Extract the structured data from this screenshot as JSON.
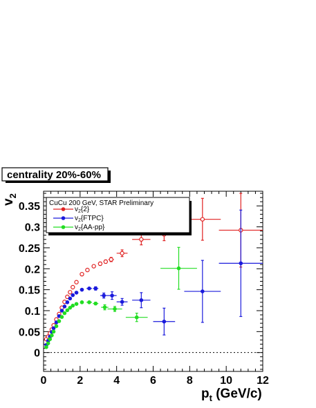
{
  "chart_data": {
    "type": "scatter",
    "title": "",
    "box_label": "centrality 20%-60%",
    "xlabel": {
      "main": "p",
      "sub": "t",
      "tail": " (GeV/c)"
    },
    "ylabel": {
      "main": "v",
      "sub": "2"
    },
    "xlim": [
      0,
      12
    ],
    "ylim": [
      -0.045,
      0.385
    ],
    "x_ticks": [
      "0",
      "2",
      "4",
      "6",
      "8",
      "10",
      "12"
    ],
    "y_ticks": [
      "0",
      "0.05",
      "0.1",
      "0.15",
      "0.2",
      "0.25",
      "0.3",
      "0.35"
    ],
    "zero_line": "dotted",
    "grid": false,
    "legend": {
      "position": "top-left",
      "header": "CuCu 200 GeV, STAR Preliminary",
      "entries": [
        {
          "main": "v",
          "sub": "2",
          "tail": "{2}"
        },
        {
          "main": "v",
          "sub": "2",
          "tail": "{FTPC}"
        },
        {
          "main": "v",
          "sub": "2",
          "tail": "{AA-pp}"
        }
      ]
    },
    "series": [
      {
        "color": "#e02020",
        "marker": "open-circle",
        "points": [
          {
            "x": 0.15,
            "y": 0.032,
            "xerr": 0,
            "yerr": 0
          },
          {
            "x": 0.25,
            "y": 0.038,
            "xerr": 0,
            "yerr": 0
          },
          {
            "x": 0.35,
            "y": 0.046,
            "xerr": 0,
            "yerr": 0
          },
          {
            "x": 0.45,
            "y": 0.055,
            "xerr": 0,
            "yerr": 0
          },
          {
            "x": 0.55,
            "y": 0.065,
            "xerr": 0,
            "yerr": 0
          },
          {
            "x": 0.7,
            "y": 0.079,
            "xerr": 0,
            "yerr": 0
          },
          {
            "x": 0.85,
            "y": 0.092,
            "xerr": 0,
            "yerr": 0
          },
          {
            "x": 1.0,
            "y": 0.107,
            "xerr": 0,
            "yerr": 0
          },
          {
            "x": 1.15,
            "y": 0.121,
            "xerr": 0,
            "yerr": 0
          },
          {
            "x": 1.3,
            "y": 0.133,
            "xerr": 0,
            "yerr": 0
          },
          {
            "x": 1.45,
            "y": 0.144,
            "xerr": 0,
            "yerr": 0
          },
          {
            "x": 1.6,
            "y": 0.156,
            "xerr": 0,
            "yerr": 0
          },
          {
            "x": 1.8,
            "y": 0.168,
            "xerr": 0,
            "yerr": 0
          },
          {
            "x": 2.1,
            "y": 0.187,
            "xerr": 0.1,
            "yerr": 0
          },
          {
            "x": 2.4,
            "y": 0.197,
            "xerr": 0.1,
            "yerr": 0
          },
          {
            "x": 2.75,
            "y": 0.206,
            "xerr": 0.1,
            "yerr": 0
          },
          {
            "x": 3.1,
            "y": 0.212,
            "xerr": 0.1,
            "yerr": 0.004
          },
          {
            "x": 3.4,
            "y": 0.217,
            "xerr": 0.1,
            "yerr": 0.004
          },
          {
            "x": 3.7,
            "y": 0.222,
            "xerr": 0.15,
            "yerr": 0.005
          },
          {
            "x": 4.3,
            "y": 0.237,
            "xerr": 0.3,
            "yerr": 0.008
          },
          {
            "x": 5.35,
            "y": 0.27,
            "xerr": 0.5,
            "yerr": 0.013
          },
          {
            "x": 6.6,
            "y": 0.282,
            "xerr": 0.6,
            "yerr": 0.015
          },
          {
            "x": 8.7,
            "y": 0.318,
            "xerr": 1.0,
            "yerr": 0.05
          },
          {
            "x": 10.8,
            "y": 0.292,
            "xerr": 1.2,
            "yerr": 0.088
          }
        ]
      },
      {
        "color": "#1a1adc",
        "marker": "filled-circle",
        "points": [
          {
            "x": 0.15,
            "y": 0.018,
            "xerr": 0,
            "yerr": 0
          },
          {
            "x": 0.25,
            "y": 0.028,
            "xerr": 0,
            "yerr": 0
          },
          {
            "x": 0.35,
            "y": 0.038,
            "xerr": 0,
            "yerr": 0
          },
          {
            "x": 0.45,
            "y": 0.049,
            "xerr": 0,
            "yerr": 0
          },
          {
            "x": 0.55,
            "y": 0.058,
            "xerr": 0,
            "yerr": 0
          },
          {
            "x": 0.7,
            "y": 0.072,
            "xerr": 0,
            "yerr": 0
          },
          {
            "x": 0.85,
            "y": 0.087,
            "xerr": 0,
            "yerr": 0
          },
          {
            "x": 1.0,
            "y": 0.1,
            "xerr": 0,
            "yerr": 0
          },
          {
            "x": 1.15,
            "y": 0.11,
            "xerr": 0,
            "yerr": 0
          },
          {
            "x": 1.3,
            "y": 0.12,
            "xerr": 0,
            "yerr": 0
          },
          {
            "x": 1.45,
            "y": 0.129,
            "xerr": 0,
            "yerr": 0
          },
          {
            "x": 1.6,
            "y": 0.137,
            "xerr": 0,
            "yerr": 0
          },
          {
            "x": 1.8,
            "y": 0.143,
            "xerr": 0.1,
            "yerr": 0
          },
          {
            "x": 2.1,
            "y": 0.15,
            "xerr": 0.1,
            "yerr": 0
          },
          {
            "x": 2.5,
            "y": 0.153,
            "xerr": 0.15,
            "yerr": 0
          },
          {
            "x": 2.85,
            "y": 0.153,
            "xerr": 0.15,
            "yerr": 0.004
          },
          {
            "x": 3.3,
            "y": 0.136,
            "xerr": 0.2,
            "yerr": 0.006
          },
          {
            "x": 3.75,
            "y": 0.136,
            "xerr": 0.25,
            "yerr": 0.009
          },
          {
            "x": 4.3,
            "y": 0.121,
            "xerr": 0.3,
            "yerr": 0.008
          },
          {
            "x": 5.35,
            "y": 0.125,
            "xerr": 0.5,
            "yerr": 0.018
          },
          {
            "x": 6.6,
            "y": 0.074,
            "xerr": 0.6,
            "yerr": 0.032
          },
          {
            "x": 8.7,
            "y": 0.146,
            "xerr": 1.0,
            "yerr": 0.074
          },
          {
            "x": 10.8,
            "y": 0.213,
            "xerr": 1.2,
            "yerr": 0.127
          }
        ]
      },
      {
        "color": "#22dd22",
        "marker": "filled-circle",
        "points": [
          {
            "x": 0.15,
            "y": 0.013,
            "xerr": 0,
            "yerr": 0
          },
          {
            "x": 0.25,
            "y": 0.022,
            "xerr": 0,
            "yerr": 0
          },
          {
            "x": 0.35,
            "y": 0.032,
            "xerr": 0,
            "yerr": 0
          },
          {
            "x": 0.45,
            "y": 0.041,
            "xerr": 0,
            "yerr": 0
          },
          {
            "x": 0.55,
            "y": 0.05,
            "xerr": 0,
            "yerr": 0
          },
          {
            "x": 0.7,
            "y": 0.063,
            "xerr": 0,
            "yerr": 0
          },
          {
            "x": 0.85,
            "y": 0.075,
            "xerr": 0,
            "yerr": 0
          },
          {
            "x": 1.0,
            "y": 0.085,
            "xerr": 0,
            "yerr": 0
          },
          {
            "x": 1.15,
            "y": 0.094,
            "xerr": 0,
            "yerr": 0
          },
          {
            "x": 1.3,
            "y": 0.101,
            "xerr": 0,
            "yerr": 0
          },
          {
            "x": 1.45,
            "y": 0.107,
            "xerr": 0,
            "yerr": 0
          },
          {
            "x": 1.6,
            "y": 0.112,
            "xerr": 0,
            "yerr": 0
          },
          {
            "x": 1.8,
            "y": 0.116,
            "xerr": 0.1,
            "yerr": 0
          },
          {
            "x": 2.1,
            "y": 0.12,
            "xerr": 0.1,
            "yerr": 0
          },
          {
            "x": 2.5,
            "y": 0.12,
            "xerr": 0.15,
            "yerr": 0
          },
          {
            "x": 2.85,
            "y": 0.117,
            "xerr": 0.15,
            "yerr": 0.003
          },
          {
            "x": 3.35,
            "y": 0.108,
            "xerr": 0.2,
            "yerr": 0.006
          },
          {
            "x": 3.9,
            "y": 0.104,
            "xerr": 0.4,
            "yerr": 0.006
          },
          {
            "x": 5.1,
            "y": 0.084,
            "xerr": 0.6,
            "yerr": 0.01
          },
          {
            "x": 7.4,
            "y": 0.201,
            "xerr": 1.0,
            "yerr": 0.05
          }
        ]
      }
    ]
  }
}
